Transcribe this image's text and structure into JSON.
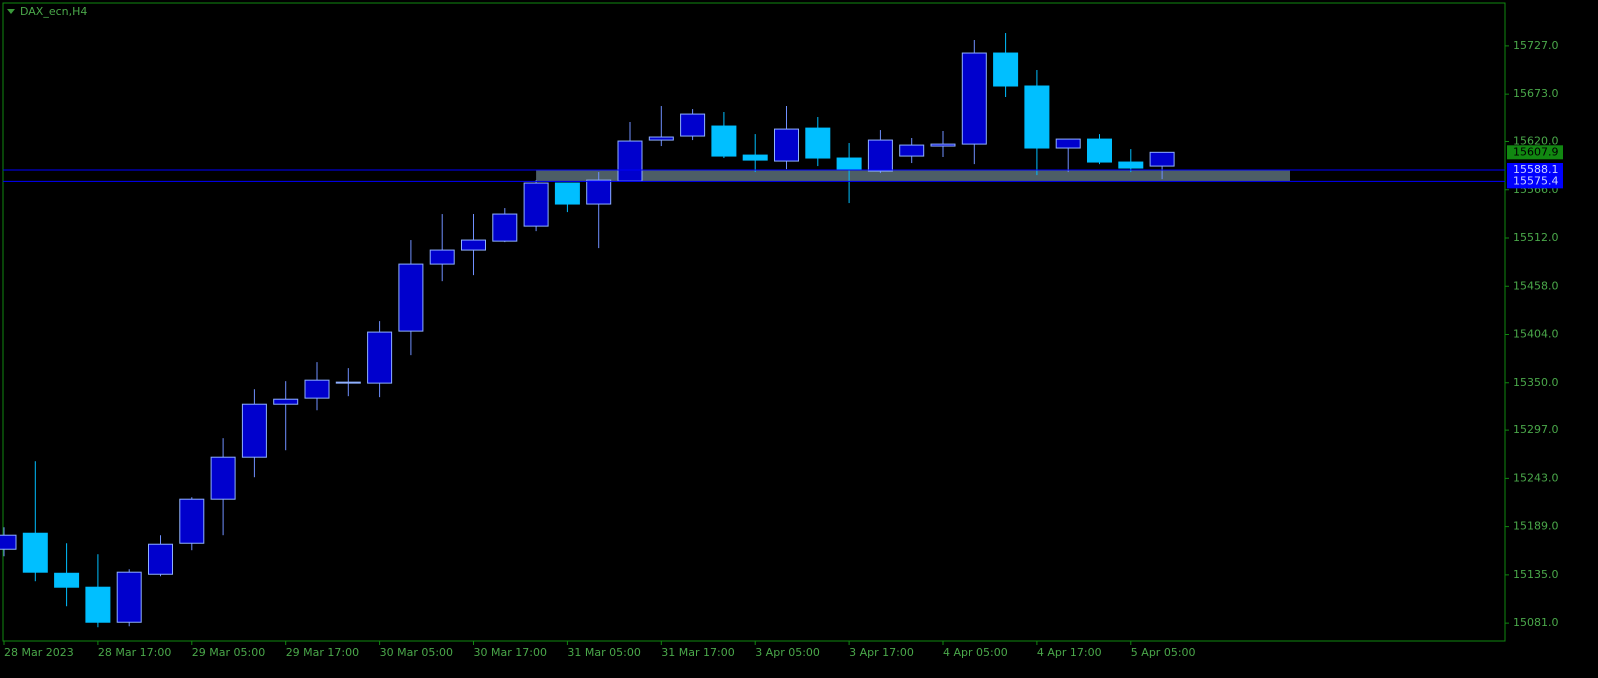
{
  "chart_data": {
    "type": "candlestick",
    "title": "DAX_ecn,H4",
    "categories": [
      "28 Mar 2023",
      null,
      null,
      "28 Mar 17:00",
      null,
      null,
      "29 Mar 05:00",
      null,
      null,
      "29 Mar 17:00",
      null,
      null,
      "30 Mar 05:00",
      null,
      null,
      "30 Mar 17:00",
      null,
      null,
      "31 Mar 05:00",
      null,
      null,
      "31 Mar 17:00",
      null,
      null,
      "3 Apr 05:00",
      null,
      null,
      "3 Apr 17:00",
      null,
      null,
      "4 Apr 05:00",
      null,
      null,
      "4 Apr 17:00",
      null,
      null,
      "5 Apr 05:00",
      null
    ],
    "open": [
      15163.7,
      15181.6,
      15136.8,
      15121.2,
      15082.0,
      15135.7,
      15170.4,
      15219.7,
      15266.7,
      15326.0,
      15332.8,
      15350.7,
      15349.6,
      15407.8,
      15482.8,
      15498.5,
      15508.5,
      15525.3,
      15573.5,
      15550.0,
      15575.7,
      15621.6,
      15626.1,
      15637.3,
      15604.8,
      15598.1,
      15635.0,
      15601.5,
      15586.9,
      15603.7,
      15614.9,
      15617.1,
      15719.0,
      15682.1,
      15612.7,
      15622.7,
      15597.0,
      15592.5
    ],
    "high": [
      15188.3,
      15262.2,
      15170.4,
      15158.1,
      15141.3,
      15179.4,
      15221.9,
      15288.0,
      15342.8,
      15351.8,
      15373.1,
      15366.4,
      15419.0,
      15509.7,
      15538.8,
      15538.8,
      15545.5,
      15576.8,
      15573.5,
      15585.8,
      15641.8,
      15659.7,
      15656.3,
      15653.0,
      15628.3,
      15659.7,
      15647.4,
      15618.3,
      15632.8,
      15623.9,
      15631.7,
      15733.6,
      15741.4,
      15700.0,
      15622.7,
      15628.3,
      15611.5,
      15608.2
    ],
    "low": [
      15155.9,
      15127.9,
      15099.9,
      15076.4,
      15077.5,
      15133.5,
      15162.6,
      15179.4,
      15244.3,
      15274.5,
      15319.3,
      15335.0,
      15333.9,
      15380.9,
      15463.7,
      15470.5,
      15507.4,
      15519.7,
      15541.0,
      15500.7,
      15575.7,
      15614.9,
      15621.6,
      15601.5,
      15585.8,
      15589.1,
      15592.5,
      15551.1,
      15584.7,
      15595.9,
      15602.6,
      15594.7,
      15669.8,
      15582.4,
      15585.8,
      15594.7,
      15585.8,
      15577.9
    ],
    "close": [
      15179.4,
      15138.0,
      15121.2,
      15082.0,
      15138.0,
      15169.3,
      15219.7,
      15266.7,
      15326.0,
      15331.6,
      15352.9,
      15350.7,
      15406.7,
      15482.8,
      15498.5,
      15509.7,
      15538.8,
      15573.5,
      15550.0,
      15576.8,
      15620.5,
      15625.0,
      15650.7,
      15603.7,
      15599.2,
      15633.9,
      15601.5,
      15589.1,
      15621.6,
      15616.0,
      15617.1,
      15719.0,
      15682.1,
      15612.7,
      15622.7,
      15597.0,
      15590.3,
      15607.9
    ],
    "up_color": "#0000cd",
    "down_color": "#00bfff",
    "ylim": [
      15061,
      15775
    ],
    "yticks": [
      {
        "value": 15081,
        "label": "15081.0"
      },
      {
        "value": 15135,
        "label": "15135.0"
      },
      {
        "value": 15189,
        "label": "15189.0"
      },
      {
        "value": 15243,
        "label": "15243.0"
      },
      {
        "value": 15297,
        "label": "15297.0"
      },
      {
        "value": 15350,
        "label": "15350.0"
      },
      {
        "value": 15404,
        "label": "15404.0"
      },
      {
        "value": 15458,
        "label": "15458.0"
      },
      {
        "value": 15512,
        "label": "15512.0"
      },
      {
        "value": 15566,
        "label": "15566.0"
      },
      {
        "value": 15620,
        "label": "15620.0"
      },
      {
        "value": 15673,
        "label": "15673.0"
      },
      {
        "value": 15727,
        "label": "15727.0"
      }
    ],
    "current_price": 15607.9,
    "levels": [
      15588.1,
      15575.4
    ]
  }
}
